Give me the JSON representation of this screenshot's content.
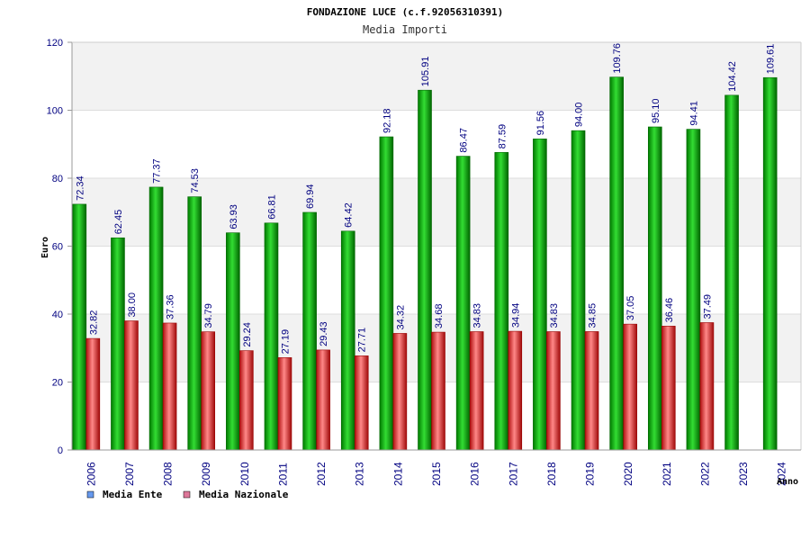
{
  "chart_data": {
    "type": "bar",
    "title": "FONDAZIONE LUCE (c.f.92056310391)",
    "subtitle": "Media Importi",
    "ylabel": "Euro",
    "xlabel": "Anno",
    "ylim": [
      0,
      120
    ],
    "yticks": [
      "0",
      "20",
      "40",
      "60",
      "80",
      "100",
      "120"
    ],
    "categories": [
      "2006",
      "2007",
      "2008",
      "2009",
      "2010",
      "2011",
      "2012",
      "2013",
      "2014",
      "2015",
      "2016",
      "2017",
      "2018",
      "2019",
      "2020",
      "2021",
      "2022",
      "2023",
      "2024"
    ],
    "series": [
      {
        "name": "Media Ente",
        "color": "#00aa00",
        "legend_color": "#6699ee",
        "values": [
          72.34,
          62.45,
          77.37,
          74.53,
          63.93,
          66.81,
          69.94,
          64.42,
          92.18,
          105.91,
          86.47,
          87.59,
          91.56,
          94.0,
          109.76,
          95.1,
          94.41,
          104.42,
          109.61
        ],
        "labels": [
          "72.34",
          "62.45",
          "77.37",
          "74.53",
          "63.93",
          "66.81",
          "69.94",
          "64.42",
          "92.18",
          "105.91",
          "86.47",
          "87.59",
          "91.56",
          "94.00",
          "109.76",
          "95.10",
          "94.41",
          "104.42",
          "109.61"
        ]
      },
      {
        "name": "Media Nazionale",
        "color": "#dd2222",
        "legend_color": "#dd7799",
        "values": [
          32.82,
          38.0,
          37.36,
          34.79,
          29.24,
          27.19,
          29.43,
          27.71,
          34.32,
          34.68,
          34.83,
          34.94,
          34.83,
          34.85,
          37.05,
          36.46,
          37.49,
          null,
          null
        ],
        "labels": [
          "32.82",
          "38.00",
          "37.36",
          "34.79",
          "29.24",
          "27.19",
          "29.43",
          "27.71",
          "34.32",
          "34.68",
          "34.83",
          "34.94",
          "34.83",
          "34.85",
          "37.05",
          "36.46",
          "37.49",
          null,
          null
        ]
      }
    ],
    "grid": true,
    "legend_position": "bottom-left"
  }
}
